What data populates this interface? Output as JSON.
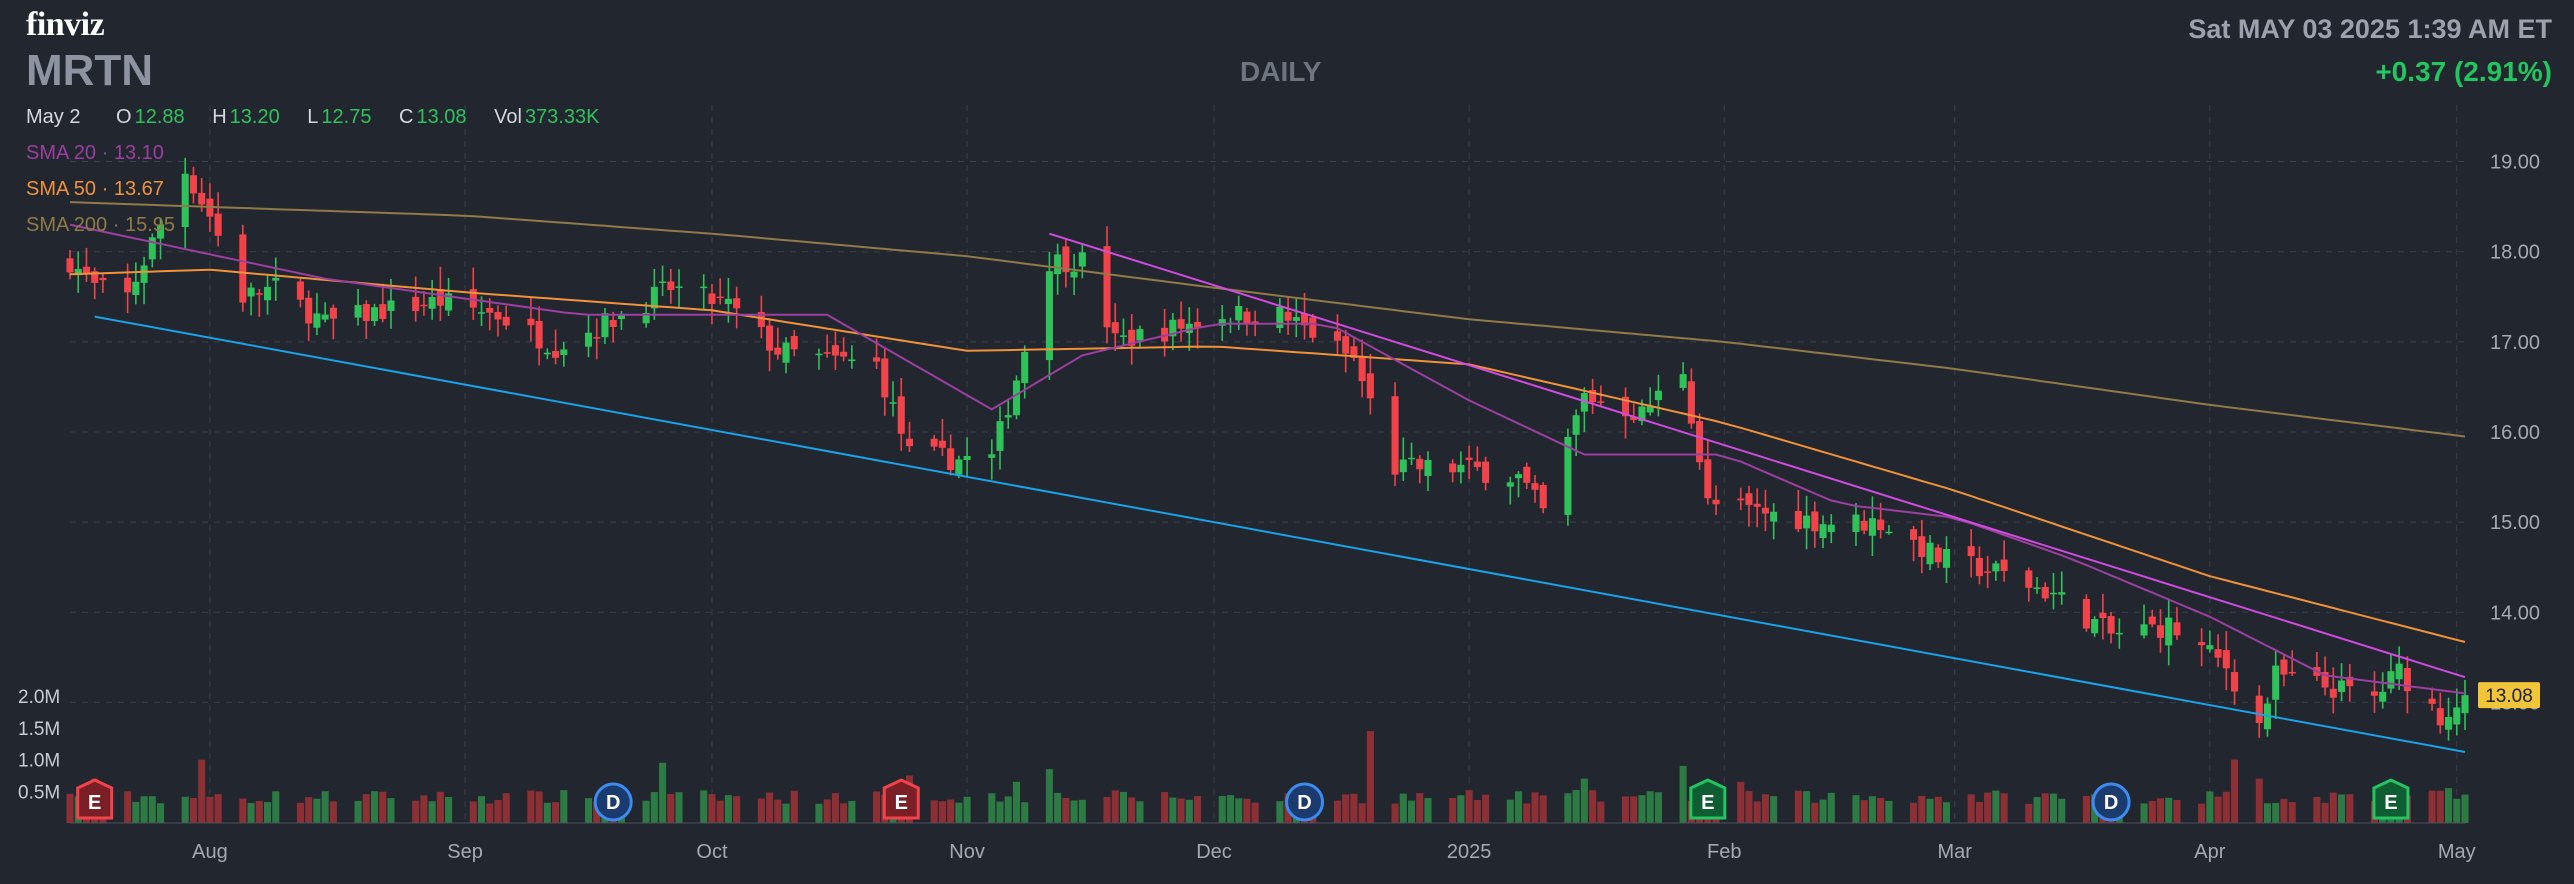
{
  "header": {
    "logo": "finviz",
    "ticker": "MRTN",
    "period": "DAILY",
    "datetime": "Sat MAY 03 2025 1:39 AM ET",
    "change": "+0.37 (2.91%)"
  },
  "ohlc": {
    "date": "May 2",
    "open_label": "O",
    "open": "12.88",
    "high_label": "H",
    "high": "13.20",
    "low_label": "L",
    "low": "12.75",
    "close_label": "C",
    "close": "13.08",
    "vol_label": "Vol",
    "vol": "373.33K"
  },
  "sma": [
    {
      "label": "SMA 20",
      "value": "13.10",
      "color": "#9b3fa0"
    },
    {
      "label": "SMA 50",
      "value": "13.67",
      "color": "#f0923a"
    },
    {
      "label": "SMA 200",
      "value": "15.95",
      "color": "#8f7a48"
    }
  ],
  "colors": {
    "background": "#22262f",
    "up": "#2fc25b",
    "down": "#f2434b",
    "grid": "#3a3f4a",
    "lower_trendline": "#1aa3e8",
    "upper_trendline": "#d04be0",
    "price_badge": "#f0c53a"
  },
  "chart_data": {
    "type": "candlestick",
    "ylim": [
      12.25,
      19.35
    ],
    "price_ticks": [
      "19.00",
      "18.00",
      "17.00",
      "16.00",
      "15.00",
      "14.00",
      "13.00"
    ],
    "last_price": "13.08",
    "volume_ticks": [
      "2.0M",
      "1.5M",
      "1.0M",
      "0.5M"
    ],
    "x_labels": [
      "Aug",
      "Sep",
      "Oct",
      "Nov",
      "Dec",
      "2025",
      "Feb",
      "Mar",
      "Apr",
      "May"
    ],
    "start_date": "2024-07-15",
    "end_date": "2025-05-02",
    "close_path": [
      [
        "2024-07-15",
        17.9
      ],
      [
        "2024-07-18",
        17.6
      ],
      [
        "2024-07-22",
        17.5
      ],
      [
        "2024-07-26",
        18.3
      ],
      [
        "2024-07-29",
        18.9
      ],
      [
        "2024-08-01",
        18.4
      ],
      [
        "2024-08-05",
        17.5
      ],
      [
        "2024-08-09",
        17.6
      ],
      [
        "2024-08-15",
        17.2
      ],
      [
        "2024-08-22",
        17.35
      ],
      [
        "2024-08-29",
        17.45
      ],
      [
        "2024-09-05",
        17.3
      ],
      [
        "2024-09-12",
        16.95
      ],
      [
        "2024-09-19",
        17.25
      ],
      [
        "2024-09-26",
        17.6
      ],
      [
        "2024-10-03",
        17.4
      ],
      [
        "2024-10-09",
        16.9
      ],
      [
        "2024-10-15",
        16.8
      ],
      [
        "2024-10-21",
        16.75
      ],
      [
        "2024-10-25",
        15.75
      ],
      [
        "2024-10-30",
        15.7
      ],
      [
        "2024-11-04",
        15.7
      ],
      [
        "2024-11-07",
        16.6
      ],
      [
        "2024-11-11",
        17.9
      ],
      [
        "2024-11-15",
        17.9
      ],
      [
        "2024-11-19",
        17.0
      ],
      [
        "2024-11-26",
        17.15
      ],
      [
        "2024-12-02",
        17.3
      ],
      [
        "2024-12-09",
        17.3
      ],
      [
        "2024-12-13",
        17.1
      ],
      [
        "2024-12-18",
        16.8
      ],
      [
        "2024-12-23",
        15.6
      ],
      [
        "2024-12-31",
        15.6
      ],
      [
        "2025-01-07",
        15.5
      ],
      [
        "2025-01-10",
        15.1
      ],
      [
        "2025-01-15",
        16.4
      ],
      [
        "2025-01-22",
        16.2
      ],
      [
        "2025-01-27",
        16.7
      ],
      [
        "2025-01-30",
        15.2
      ],
      [
        "2025-02-06",
        15.1
      ],
      [
        "2025-02-13",
        15.0
      ],
      [
        "2025-02-20",
        15.0
      ],
      [
        "2025-02-27",
        14.6
      ],
      [
        "2025-03-06",
        14.45
      ],
      [
        "2025-03-13",
        14.2
      ],
      [
        "2025-03-20",
        13.75
      ],
      [
        "2025-03-27",
        13.85
      ],
      [
        "2025-04-03",
        13.4
      ],
      [
        "2025-04-07",
        12.75
      ],
      [
        "2025-04-09",
        13.3
      ],
      [
        "2025-04-14",
        13.2
      ],
      [
        "2025-04-21",
        13.05
      ],
      [
        "2025-04-24",
        13.35
      ],
      [
        "2025-04-29",
        12.85
      ],
      [
        "2025-05-02",
        13.08
      ]
    ],
    "sma20_path": [
      [
        "2024-07-15",
        18.3
      ],
      [
        "2024-08-15",
        17.7
      ],
      [
        "2024-09-15",
        17.3
      ],
      [
        "2024-10-15",
        17.3
      ],
      [
        "2024-11-04",
        16.25
      ],
      [
        "2024-11-15",
        16.85
      ],
      [
        "2024-12-01",
        17.2
      ],
      [
        "2024-12-15",
        17.2
      ],
      [
        "2025-01-01",
        16.35
      ],
      [
        "2025-01-15",
        15.75
      ],
      [
        "2025-02-01",
        15.75
      ],
      [
        "2025-02-15",
        15.2
      ],
      [
        "2025-03-01",
        15.05
      ],
      [
        "2025-03-15",
        14.6
      ],
      [
        "2025-04-01",
        13.95
      ],
      [
        "2025-04-15",
        13.3
      ],
      [
        "2025-05-02",
        13.1
      ]
    ],
    "sma50_path": [
      [
        "2024-07-15",
        17.75
      ],
      [
        "2024-08-01",
        17.8
      ],
      [
        "2024-09-01",
        17.55
      ],
      [
        "2024-10-01",
        17.35
      ],
      [
        "2024-11-01",
        16.9
      ],
      [
        "2024-12-01",
        16.95
      ],
      [
        "2025-01-01",
        16.75
      ],
      [
        "2025-02-01",
        16.1
      ],
      [
        "2025-03-01",
        15.35
      ],
      [
        "2025-04-01",
        14.4
      ],
      [
        "2025-05-02",
        13.67
      ]
    ],
    "sma200_path": [
      [
        "2024-07-15",
        18.55
      ],
      [
        "2024-09-01",
        18.4
      ],
      [
        "2024-10-01",
        18.2
      ],
      [
        "2024-11-01",
        17.95
      ],
      [
        "2024-12-01",
        17.6
      ],
      [
        "2025-01-01",
        17.25
      ],
      [
        "2025-02-01",
        17.0
      ],
      [
        "2025-03-01",
        16.7
      ],
      [
        "2025-04-01",
        16.3
      ],
      [
        "2025-05-02",
        15.95
      ]
    ],
    "trendlines": [
      {
        "role": "lower",
        "from": [
          "2024-07-18",
          17.28
        ],
        "to": [
          "2025-05-02",
          12.45
        ]
      },
      {
        "role": "upper",
        "from": [
          "2024-11-11",
          18.2
        ],
        "to": [
          "2025-05-02",
          13.28
        ]
      }
    ],
    "events": [
      {
        "date": "2024-07-18",
        "label": "E",
        "kind": "earnings-miss"
      },
      {
        "date": "2024-09-19",
        "label": "D",
        "kind": "dividend"
      },
      {
        "date": "2024-10-24",
        "label": "E",
        "kind": "earnings-miss"
      },
      {
        "date": "2024-12-12",
        "label": "D",
        "kind": "dividend"
      },
      {
        "date": "2025-01-30",
        "label": "E",
        "kind": "earnings-beat"
      },
      {
        "date": "2025-03-20",
        "label": "D",
        "kind": "dividend"
      },
      {
        "date": "2025-04-23",
        "label": "E",
        "kind": "earnings-beat"
      }
    ],
    "volume_base_m": 0.3,
    "volume_spikes": [
      [
        "2024-07-18",
        0.7
      ],
      [
        "2024-07-31",
        1.0
      ],
      [
        "2024-09-25",
        0.95
      ],
      [
        "2024-10-25",
        0.75
      ],
      [
        "2024-11-07",
        0.65
      ],
      [
        "2024-11-11",
        0.85
      ],
      [
        "2024-12-20",
        1.45
      ],
      [
        "2025-01-15",
        0.7
      ],
      [
        "2025-01-27",
        0.9
      ],
      [
        "2025-02-03",
        0.65
      ],
      [
        "2025-04-04",
        1.0
      ],
      [
        "2025-04-07",
        0.7
      ],
      [
        "2025-04-23",
        0.65
      ],
      [
        "2025-04-30",
        0.55
      ]
    ]
  }
}
